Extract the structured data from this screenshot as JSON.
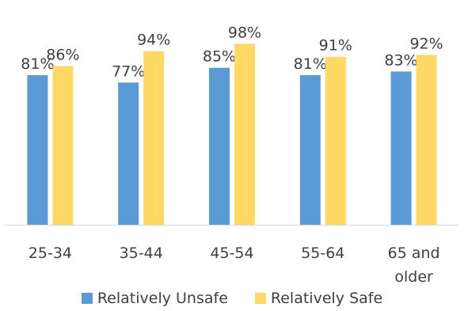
{
  "chart_data": {
    "type": "bar",
    "categories": [
      "25-34",
      "35-44",
      "45-54",
      "55-64",
      "65 and older"
    ],
    "category_lines": [
      [
        "25-34"
      ],
      [
        "35-44"
      ],
      [
        "45-54"
      ],
      [
        "55-64"
      ],
      [
        "65 and",
        "older"
      ]
    ],
    "series": [
      {
        "name": "Relatively Unsafe",
        "color": "#5B9BD5",
        "values": [
          81,
          77,
          85,
          81,
          83
        ],
        "labels": [
          "81%",
          "77%",
          "85%",
          "81%",
          "83%"
        ]
      },
      {
        "name": "Relatively Safe",
        "color": "#FFD966",
        "values": [
          86,
          94,
          98,
          91,
          92
        ],
        "labels": [
          "86%",
          "94%",
          "98%",
          "91%",
          "92%"
        ]
      }
    ],
    "ylim": [
      0,
      120
    ],
    "grid": false,
    "legend_position": "bottom",
    "axis_color": "#D9D9D9",
    "text_color": "#404040"
  }
}
